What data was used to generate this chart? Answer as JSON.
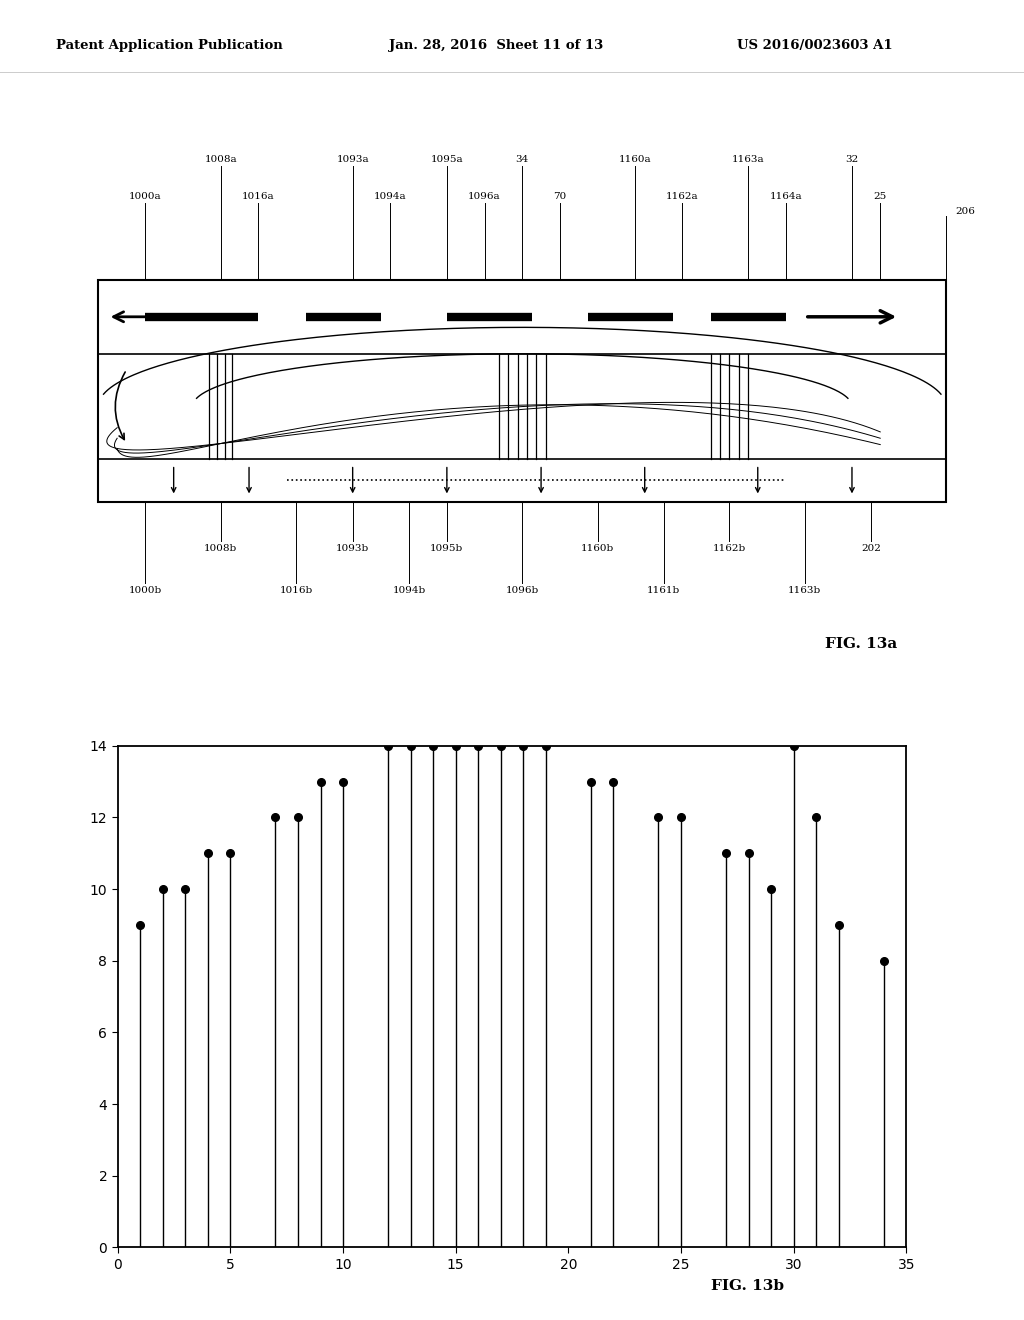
{
  "header_left": "Patent Application Publication",
  "header_mid": "Jan. 28, 2016  Sheet 11 of 13",
  "header_right": "US 2016/0023603 A1",
  "fig13a_label": "FIG. 13a",
  "fig13b_label": "FIG. 13b",
  "stem_x": [
    1,
    2,
    3,
    4,
    5,
    7,
    8,
    9,
    10,
    12,
    13,
    14,
    15,
    16,
    17,
    18,
    19,
    21,
    22,
    24,
    25,
    27,
    28,
    29,
    30,
    31,
    32,
    34
  ],
  "stem_y": [
    9,
    10,
    10,
    11,
    11,
    12,
    12,
    13,
    13,
    14,
    14,
    14,
    14,
    14,
    14,
    14,
    14,
    13,
    13,
    12,
    12,
    11,
    11,
    10,
    14,
    12,
    9,
    8
  ],
  "plot_xlim": [
    0,
    35
  ],
  "plot_ylim": [
    0,
    14
  ],
  "xticks": [
    0,
    5,
    10,
    15,
    20,
    25,
    30,
    35
  ],
  "yticks": [
    0,
    2,
    4,
    6,
    8,
    10,
    12,
    14
  ],
  "background": "#ffffff"
}
